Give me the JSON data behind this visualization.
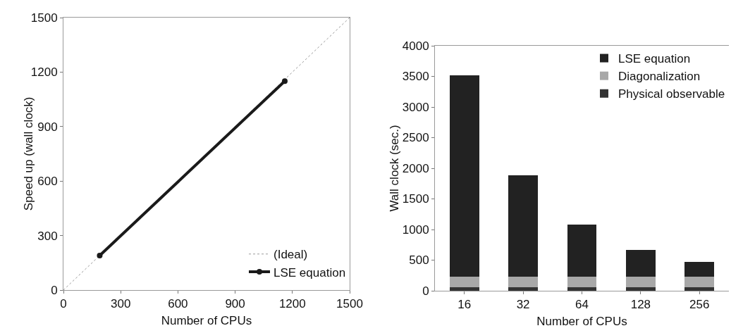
{
  "chart_data": [
    {
      "type": "line",
      "xlabel": "Number of CPUs",
      "ylabel": "Speed up (wall clock)",
      "xlim": [
        0,
        1500
      ],
      "ylim": [
        0,
        1500
      ],
      "xticks": [
        0,
        300,
        600,
        900,
        1200,
        1500
      ],
      "yticks": [
        0,
        300,
        600,
        900,
        1200,
        1500
      ],
      "grid": false,
      "legend": "bottom right",
      "series": [
        {
          "name": "(Ideal)",
          "color": "#9a9a9a",
          "x": [
            0,
            1500
          ],
          "values": [
            0,
            1500
          ],
          "marker": "none",
          "line_style": "dotted"
        },
        {
          "name": "LSE equation",
          "color": "#1a1a1a",
          "x": [
            190,
            1160
          ],
          "values": [
            190,
            1150
          ],
          "marker": "circle",
          "line_style": "solid"
        }
      ]
    },
    {
      "type": "bar",
      "stacked": true,
      "xlabel": "Number of CPUs",
      "ylabel": "Wall clock (sec.)",
      "categories": [
        "16",
        "32",
        "64",
        "128",
        "256"
      ],
      "ylim": [
        0,
        4000
      ],
      "yticks": [
        0,
        500,
        1000,
        1500,
        2000,
        2500,
        3000,
        3500,
        4000
      ],
      "grid": false,
      "legend": "top right",
      "series": [
        {
          "name": "Physical observable",
          "color": "#333333",
          "values": [
            55,
            55,
            55,
            55,
            55
          ]
        },
        {
          "name": "Diagonalization",
          "color": "#a8a8a8",
          "values": [
            175,
            175,
            175,
            175,
            175
          ]
        },
        {
          "name": "LSE equation",
          "color": "#222222",
          "values": [
            3290,
            1650,
            850,
            440,
            240
          ]
        }
      ]
    }
  ]
}
